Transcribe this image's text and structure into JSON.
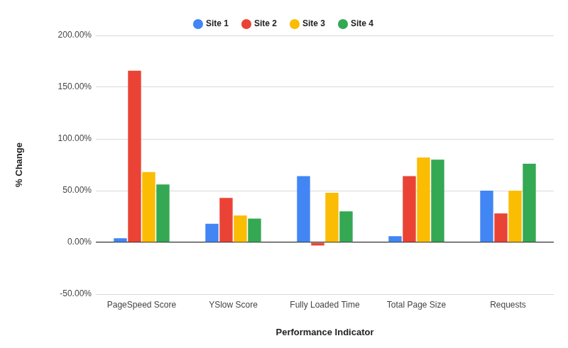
{
  "chart_data": {
    "type": "bar",
    "x_label": "Performance Indicator",
    "y_label": "% Change",
    "categories": [
      "PageSpeed Score",
      "YSlow Score",
      "Fully Loaded Time",
      "Total Page Size",
      "Requests"
    ],
    "series": [
      {
        "name": "Site 1",
        "color": "#4285f4",
        "values": [
          4,
          18,
          64,
          6,
          50
        ]
      },
      {
        "name": "Site 2",
        "color": "#ea4335",
        "values": [
          166,
          43,
          -3,
          64,
          28
        ]
      },
      {
        "name": "Site 3",
        "color": "#fbbc04",
        "values": [
          68,
          26,
          48,
          82,
          50
        ]
      },
      {
        "name": "Site 4",
        "color": "#34a853",
        "values": [
          56,
          23,
          30,
          80,
          76
        ]
      }
    ],
    "ylim": [
      -50,
      200
    ],
    "yticks": [
      {
        "value": -50,
        "label": "-50.00%"
      },
      {
        "value": 0,
        "label": "0.00%"
      },
      {
        "value": 50,
        "label": "50.00%"
      },
      {
        "value": 100,
        "label": "100.00%"
      },
      {
        "value": 150,
        "label": "150.00%"
      },
      {
        "value": 200,
        "label": "200.00%"
      }
    ],
    "grid": true,
    "legend": "top"
  }
}
